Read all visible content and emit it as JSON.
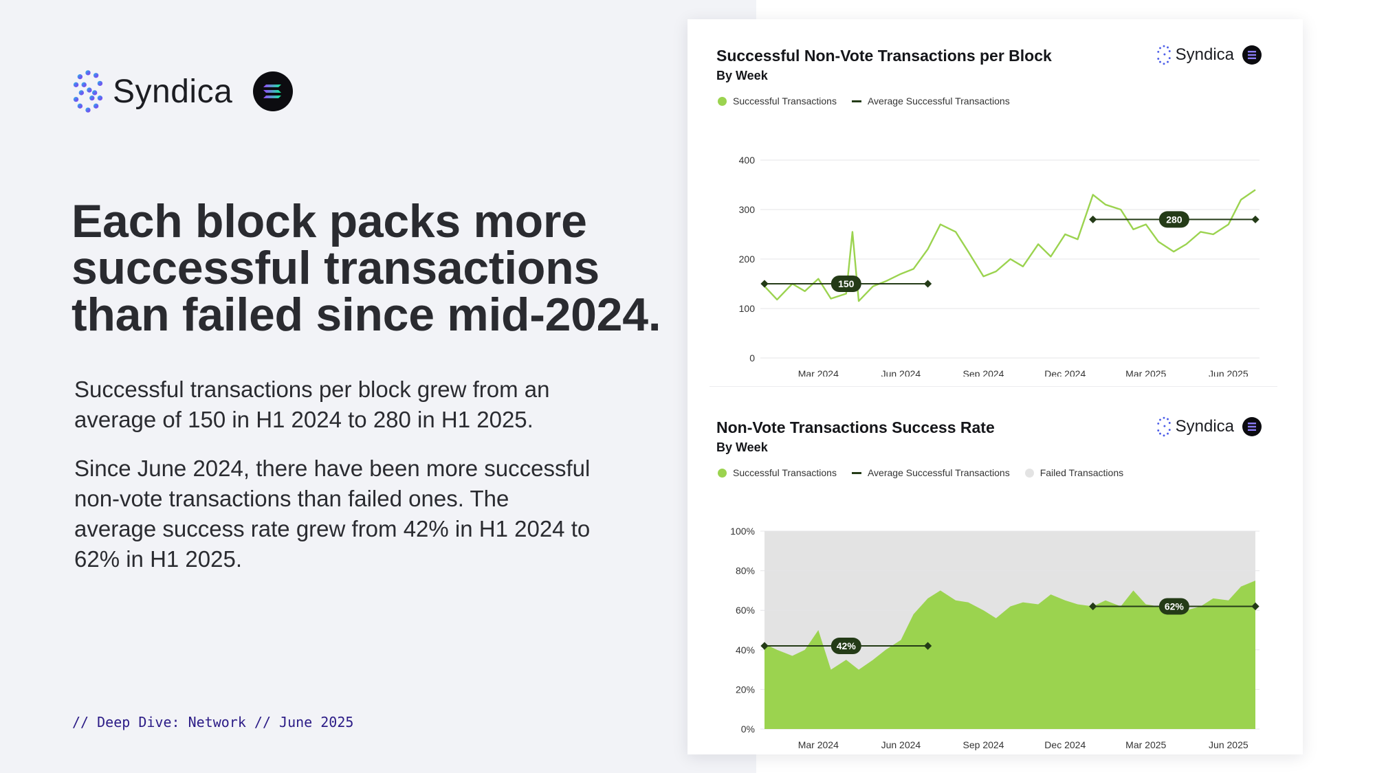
{
  "brand": {
    "name": "Syndica"
  },
  "headline": "Each block packs more successful transactions than failed since mid-2024.",
  "paragraphs": [
    "Successful transactions per block grew from an average of 150 in H1 2024 to 280 in H1 2025.",
    "Since June 2024, there have been more successful non-vote transactions than failed ones. The average success rate grew from 42% in H1 2024 to 62% in H1 2025."
  ],
  "footer": "// Deep Dive: Network // June 2025",
  "colors": {
    "success": "#9bd34f",
    "average": "#243b17",
    "failed": "#e3e3e3",
    "accent_text": "#2b1b86"
  },
  "chart_data": [
    {
      "type": "line",
      "title": "Successful Non-Vote Transactions per Block",
      "subtitle": "By Week",
      "brand": "Syndica",
      "legend": [
        "Successful Transactions",
        "Average Successful Transactions"
      ],
      "ylim": [
        0,
        400
      ],
      "yticks": [
        0,
        100,
        200,
        300,
        400
      ],
      "ytick_labels": [
        "0",
        "100",
        "200",
        "300",
        "400"
      ],
      "xticks": [
        "2024-03-01",
        "2024-06-01",
        "2024-09-01",
        "2024-12-01",
        "2025-03-01",
        "2025-06-01"
      ],
      "xtick_labels": [
        "Mar 2024",
        "Jun 2024",
        "Sep 2024",
        "Dec 2024",
        "Mar 2025",
        "Jun 2025"
      ],
      "x": [
        "2024-01-01",
        "2024-01-15",
        "2024-02-01",
        "2024-02-15",
        "2024-03-01",
        "2024-03-15",
        "2024-04-01",
        "2024-04-08",
        "2024-04-15",
        "2024-05-01",
        "2024-05-15",
        "2024-06-01",
        "2024-06-15",
        "2024-07-01",
        "2024-07-15",
        "2024-08-01",
        "2024-08-15",
        "2024-09-01",
        "2024-09-15",
        "2024-10-01",
        "2024-10-15",
        "2024-11-01",
        "2024-11-15",
        "2024-12-01",
        "2024-12-15",
        "2025-01-01",
        "2025-01-15",
        "2025-02-01",
        "2025-02-15",
        "2025-03-01",
        "2025-03-15",
        "2025-04-01",
        "2025-04-15",
        "2025-05-01",
        "2025-05-15",
        "2025-06-01",
        "2025-06-15",
        "2025-07-01"
      ],
      "series": [
        {
          "name": "Successful Transactions",
          "values": [
            145,
            118,
            150,
            135,
            160,
            120,
            130,
            255,
            115,
            145,
            155,
            170,
            180,
            220,
            270,
            255,
            215,
            165,
            175,
            200,
            185,
            230,
            205,
            250,
            240,
            330,
            310,
            300,
            260,
            270,
            235,
            215,
            230,
            255,
            250,
            270,
            320,
            340
          ]
        }
      ],
      "averages": [
        {
          "label": "150",
          "value": 150,
          "x_start": "2024-01-01",
          "x_end": "2024-07-01"
        },
        {
          "label": "280",
          "value": 280,
          "x_start": "2025-01-01",
          "x_end": "2025-07-01"
        }
      ]
    },
    {
      "type": "area",
      "title": "Non-Vote Transactions Success Rate",
      "subtitle": "By Week",
      "brand": "Syndica",
      "legend": [
        "Successful Transactions",
        "Average Successful Transactions",
        "Failed Transactions"
      ],
      "ylim": [
        0,
        100
      ],
      "yticks": [
        0,
        20,
        40,
        60,
        80,
        100
      ],
      "ytick_labels": [
        "0%",
        "20%",
        "40%",
        "60%",
        "80%",
        "100%"
      ],
      "xticks": [
        "2024-03-01",
        "2024-06-01",
        "2024-09-01",
        "2024-12-01",
        "2025-03-01",
        "2025-06-01"
      ],
      "xtick_labels": [
        "Mar 2024",
        "Jun 2024",
        "Sep 2024",
        "Dec 2024",
        "Mar 2025",
        "Jun 2025"
      ],
      "x": [
        "2024-01-01",
        "2024-01-15",
        "2024-02-01",
        "2024-02-15",
        "2024-03-01",
        "2024-03-15",
        "2024-04-01",
        "2024-04-15",
        "2024-05-01",
        "2024-05-15",
        "2024-06-01",
        "2024-06-15",
        "2024-07-01",
        "2024-07-15",
        "2024-08-01",
        "2024-08-15",
        "2024-09-01",
        "2024-09-15",
        "2024-10-01",
        "2024-10-15",
        "2024-11-01",
        "2024-11-15",
        "2024-12-01",
        "2024-12-15",
        "2025-01-01",
        "2025-01-15",
        "2025-02-01",
        "2025-02-15",
        "2025-03-01",
        "2025-03-15",
        "2025-04-01",
        "2025-04-15",
        "2025-05-01",
        "2025-05-15",
        "2025-06-01",
        "2025-06-15",
        "2025-07-01"
      ],
      "series": [
        {
          "name": "Successful Transactions",
          "values": [
            43,
            40,
            37,
            40,
            50,
            30,
            35,
            30,
            35,
            40,
            45,
            58,
            66,
            70,
            65,
            64,
            60,
            56,
            62,
            64,
            63,
            68,
            65,
            63,
            62,
            65,
            62,
            70,
            63,
            62,
            64,
            60,
            62,
            66,
            65,
            72,
            75
          ]
        },
        {
          "name": "Failed Transactions",
          "values": [
            57,
            60,
            63,
            60,
            50,
            70,
            65,
            70,
            65,
            60,
            55,
            42,
            34,
            30,
            35,
            36,
            40,
            44,
            38,
            36,
            37,
            32,
            35,
            37,
            38,
            35,
            38,
            30,
            37,
            38,
            36,
            40,
            38,
            34,
            35,
            28,
            25
          ]
        }
      ],
      "averages": [
        {
          "label": "42%",
          "value": 42,
          "x_start": "2024-01-01",
          "x_end": "2024-07-01"
        },
        {
          "label": "62%",
          "value": 62,
          "x_start": "2025-01-01",
          "x_end": "2025-07-01"
        }
      ]
    }
  ]
}
